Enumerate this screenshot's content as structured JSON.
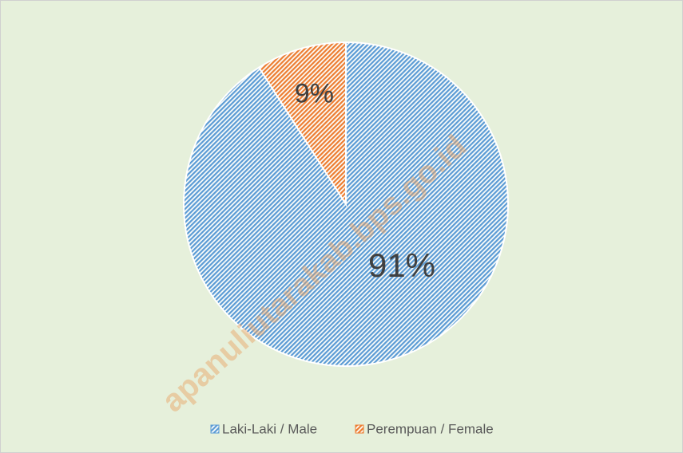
{
  "chart_data": {
    "type": "pie",
    "categories": [
      "Laki-Laki / Male",
      "Perempuan / Female"
    ],
    "values": [
      91,
      9
    ],
    "value_labels": [
      "91%",
      "9%"
    ],
    "colors": [
      "#5b9bd5",
      "#ed7d31"
    ],
    "legend": "bottom",
    "watermark": "apanuliutarakab.bps.go.id"
  }
}
